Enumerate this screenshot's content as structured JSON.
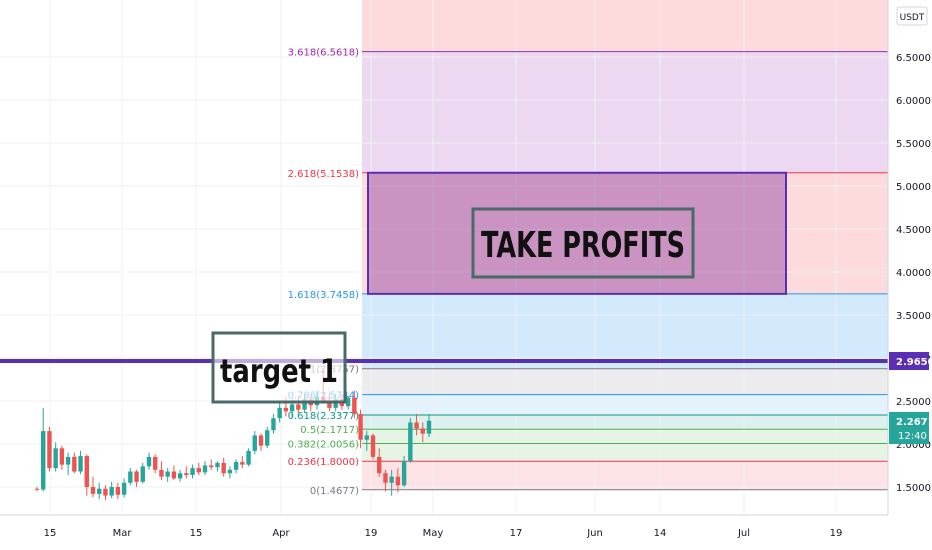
{
  "chart_data": {
    "type": "candlestick",
    "currency": "USDT",
    "y_ticks": [
      "1.5000",
      "2.0000",
      "2.5000",
      "3.0000",
      "3.5000",
      "4.0000",
      "4.5000",
      "5.0000",
      "5.5000",
      "6.0000",
      "6.5000"
    ],
    "x_ticks": [
      "15",
      "Mar",
      "15",
      "Apr",
      "19",
      "May",
      "17",
      "Jun",
      "14",
      "Jul",
      "19"
    ],
    "current_price": "2.2671",
    "countdown": "12:40",
    "horizontal_line": {
      "price": 2.965,
      "label": "2.9650",
      "color": "#5b2fb5"
    },
    "fib_levels": [
      {
        "label": "0(1.4677)",
        "value": 1.4677,
        "color": "#787b86"
      },
      {
        "label": "0.236(1.8000)",
        "value": 1.8,
        "color": "#f23645"
      },
      {
        "label": "0.382(2.0056)",
        "value": 2.0056,
        "color": "#4caf50"
      },
      {
        "label": "0.5(2.1717)",
        "value": 2.1717,
        "color": "#4caf50"
      },
      {
        "label": "0.618(2.3377)",
        "value": 2.3377,
        "color": "#089981"
      },
      {
        "label": "0.786(2.5744)",
        "value": 2.5744,
        "color": "#2196f3"
      },
      {
        "label": "1(2.8757)",
        "value": 2.8757,
        "color": "#787b86"
      },
      {
        "label": "1.618(3.7458)",
        "value": 3.7458,
        "color": "#2196f3"
      },
      {
        "label": "2.618(5.1538)",
        "value": 5.1538,
        "color": "#f23645"
      },
      {
        "label": "3.618(6.5618)",
        "value": 6.5618,
        "color": "#9c27b0"
      }
    ],
    "annotations": {
      "take_profit_box": {
        "text": "TAKE PROFITS",
        "y_from": 3.7458,
        "y_to": 5.1538
      },
      "target_label": {
        "text": "target 1"
      }
    },
    "candles": [
      {
        "o": 1.48,
        "h": 1.5,
        "l": 1.45,
        "c": 1.47
      },
      {
        "o": 1.47,
        "h": 2.42,
        "l": 1.45,
        "c": 2.15
      },
      {
        "o": 2.15,
        "h": 2.2,
        "l": 1.68,
        "c": 1.72
      },
      {
        "o": 1.72,
        "h": 2.02,
        "l": 1.68,
        "c": 1.95
      },
      {
        "o": 1.95,
        "h": 1.98,
        "l": 1.7,
        "c": 1.76
      },
      {
        "o": 1.76,
        "h": 1.9,
        "l": 1.64,
        "c": 1.85
      },
      {
        "o": 1.85,
        "h": 1.9,
        "l": 1.66,
        "c": 1.68
      },
      {
        "o": 1.68,
        "h": 1.92,
        "l": 1.65,
        "c": 1.86
      },
      {
        "o": 1.86,
        "h": 1.88,
        "l": 1.4,
        "c": 1.5
      },
      {
        "o": 1.5,
        "h": 1.62,
        "l": 1.38,
        "c": 1.42
      },
      {
        "o": 1.42,
        "h": 1.55,
        "l": 1.36,
        "c": 1.48
      },
      {
        "o": 1.48,
        "h": 1.52,
        "l": 1.35,
        "c": 1.4
      },
      {
        "o": 1.4,
        "h": 1.56,
        "l": 1.37,
        "c": 1.5
      },
      {
        "o": 1.5,
        "h": 1.55,
        "l": 1.36,
        "c": 1.41
      },
      {
        "o": 1.41,
        "h": 1.6,
        "l": 1.38,
        "c": 1.55
      },
      {
        "o": 1.55,
        "h": 1.72,
        "l": 1.52,
        "c": 1.68
      },
      {
        "o": 1.68,
        "h": 1.7,
        "l": 1.5,
        "c": 1.56
      },
      {
        "o": 1.56,
        "h": 1.78,
        "l": 1.54,
        "c": 1.74
      },
      {
        "o": 1.74,
        "h": 1.9,
        "l": 1.7,
        "c": 1.85
      },
      {
        "o": 1.85,
        "h": 1.88,
        "l": 1.66,
        "c": 1.7
      },
      {
        "o": 1.7,
        "h": 1.8,
        "l": 1.58,
        "c": 1.62
      },
      {
        "o": 1.62,
        "h": 1.72,
        "l": 1.56,
        "c": 1.68
      },
      {
        "o": 1.68,
        "h": 1.75,
        "l": 1.58,
        "c": 1.6
      },
      {
        "o": 1.6,
        "h": 1.7,
        "l": 1.56,
        "c": 1.66
      },
      {
        "o": 1.66,
        "h": 1.74,
        "l": 1.6,
        "c": 1.64
      },
      {
        "o": 1.64,
        "h": 1.76,
        "l": 1.6,
        "c": 1.72
      },
      {
        "o": 1.72,
        "h": 1.78,
        "l": 1.64,
        "c": 1.67
      },
      {
        "o": 1.67,
        "h": 1.8,
        "l": 1.64,
        "c": 1.75
      },
      {
        "o": 1.75,
        "h": 1.82,
        "l": 1.7,
        "c": 1.73
      },
      {
        "o": 1.73,
        "h": 1.8,
        "l": 1.68,
        "c": 1.78
      },
      {
        "o": 1.78,
        "h": 1.84,
        "l": 1.62,
        "c": 1.66
      },
      {
        "o": 1.66,
        "h": 1.74,
        "l": 1.6,
        "c": 1.7
      },
      {
        "o": 1.7,
        "h": 1.82,
        "l": 1.66,
        "c": 1.79
      },
      {
        "o": 1.79,
        "h": 1.86,
        "l": 1.72,
        "c": 1.76
      },
      {
        "o": 1.76,
        "h": 1.95,
        "l": 1.74,
        "c": 1.92
      },
      {
        "o": 1.92,
        "h": 2.15,
        "l": 1.88,
        "c": 2.1
      },
      {
        "o": 2.1,
        "h": 2.12,
        "l": 1.92,
        "c": 1.98
      },
      {
        "o": 1.98,
        "h": 2.2,
        "l": 1.95,
        "c": 2.16
      },
      {
        "o": 2.16,
        "h": 2.35,
        "l": 2.12,
        "c": 2.3
      },
      {
        "o": 2.3,
        "h": 2.48,
        "l": 2.25,
        "c": 2.42
      },
      {
        "o": 2.42,
        "h": 2.55,
        "l": 2.32,
        "c": 2.38
      },
      {
        "o": 2.38,
        "h": 2.52,
        "l": 2.3,
        "c": 2.46
      },
      {
        "o": 2.46,
        "h": 2.56,
        "l": 2.36,
        "c": 2.4
      },
      {
        "o": 2.4,
        "h": 2.58,
        "l": 2.36,
        "c": 2.52
      },
      {
        "o": 2.52,
        "h": 2.55,
        "l": 2.38,
        "c": 2.45
      },
      {
        "o": 2.45,
        "h": 2.62,
        "l": 2.4,
        "c": 2.55
      },
      {
        "o": 2.55,
        "h": 2.88,
        "l": 2.48,
        "c": 2.5
      },
      {
        "o": 2.5,
        "h": 2.6,
        "l": 2.38,
        "c": 2.42
      },
      {
        "o": 2.42,
        "h": 2.58,
        "l": 2.38,
        "c": 2.52
      },
      {
        "o": 2.52,
        "h": 2.58,
        "l": 2.4,
        "c": 2.44
      },
      {
        "o": 2.44,
        "h": 2.56,
        "l": 2.4,
        "c": 2.54
      },
      {
        "o": 2.54,
        "h": 2.62,
        "l": 2.3,
        "c": 2.35
      },
      {
        "o": 2.35,
        "h": 2.4,
        "l": 1.95,
        "c": 2.05
      },
      {
        "o": 2.05,
        "h": 2.15,
        "l": 1.92,
        "c": 2.1
      },
      {
        "o": 2.1,
        "h": 2.12,
        "l": 1.82,
        "c": 1.85
      },
      {
        "o": 1.85,
        "h": 1.95,
        "l": 1.62,
        "c": 1.66
      },
      {
        "o": 1.66,
        "h": 1.7,
        "l": 1.45,
        "c": 1.55
      },
      {
        "o": 1.55,
        "h": 1.7,
        "l": 1.4,
        "c": 1.62
      },
      {
        "o": 1.62,
        "h": 1.72,
        "l": 1.44,
        "c": 1.52
      },
      {
        "o": 1.52,
        "h": 1.86,
        "l": 1.5,
        "c": 1.8
      },
      {
        "o": 1.8,
        "h": 2.3,
        "l": 1.78,
        "c": 2.25
      },
      {
        "o": 2.25,
        "h": 2.35,
        "l": 2.1,
        "c": 2.18
      },
      {
        "o": 2.18,
        "h": 2.25,
        "l": 2.02,
        "c": 2.12
      },
      {
        "o": 2.12,
        "h": 2.35,
        "l": 2.08,
        "c": 2.27
      }
    ]
  }
}
